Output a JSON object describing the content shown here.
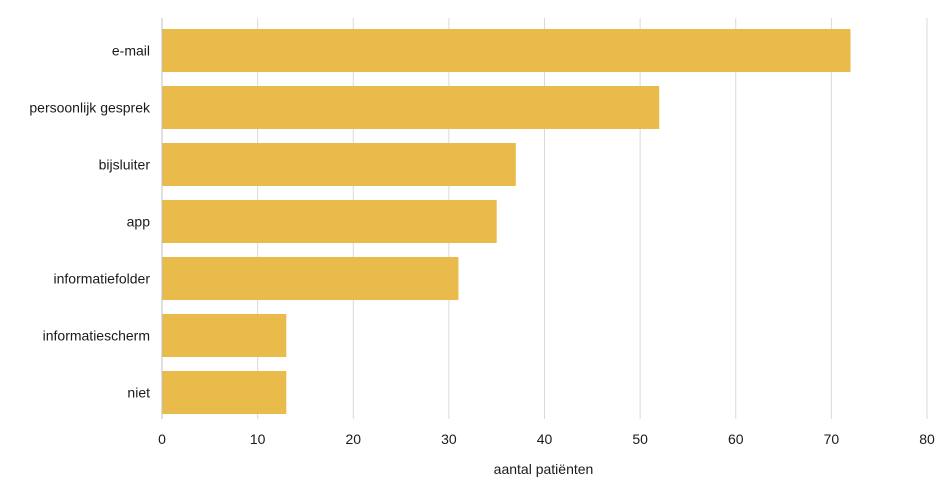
{
  "chart_data": {
    "type": "bar",
    "orientation": "horizontal",
    "categories": [
      "e-mail",
      "persoonlijk gesprek",
      "bijsluiter",
      "app",
      "informatiefolder",
      "informatiescherm",
      "niet"
    ],
    "values": [
      72,
      52,
      37,
      35,
      31,
      13,
      13
    ],
    "xlabel": "aantal patiënten",
    "ylabel": "",
    "xlim": [
      0,
      80
    ],
    "xticks": [
      "0",
      "10",
      "20",
      "30",
      "40",
      "50",
      "60",
      "70",
      "80"
    ],
    "grid": "vertical",
    "bar_color": "#E8BB4B"
  }
}
